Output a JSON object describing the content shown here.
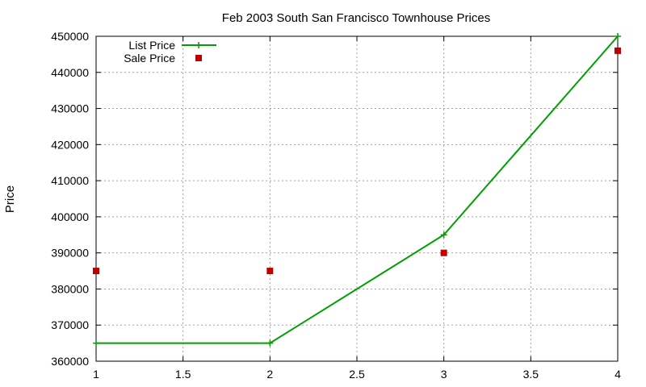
{
  "chart_data": {
    "type": "line",
    "title": "Feb 2003 South San Francisco Townhouse Prices",
    "xlabel": "",
    "ylabel": "Price",
    "xlim": [
      1,
      4
    ],
    "ylim": [
      360000,
      450000
    ],
    "x_ticks": [
      "1",
      "1.5",
      "2",
      "2.5",
      "3",
      "3.5",
      "4"
    ],
    "y_ticks": [
      "360000",
      "370000",
      "380000",
      "390000",
      "400000",
      "410000",
      "420000",
      "430000",
      "440000",
      "450000"
    ],
    "grid": true,
    "legend_position": "top-left",
    "series": [
      {
        "name": "List Price",
        "type": "linespoints",
        "color": "#00a000",
        "marker": "plus",
        "x": [
          1,
          2,
          3,
          4
        ],
        "y": [
          365000,
          365000,
          395000,
          450000
        ]
      },
      {
        "name": "Sale Price",
        "type": "points",
        "color": "#c00000",
        "marker": "square",
        "x": [
          1,
          2,
          3,
          4
        ],
        "y": [
          385000,
          385000,
          390000,
          446000
        ]
      }
    ]
  }
}
